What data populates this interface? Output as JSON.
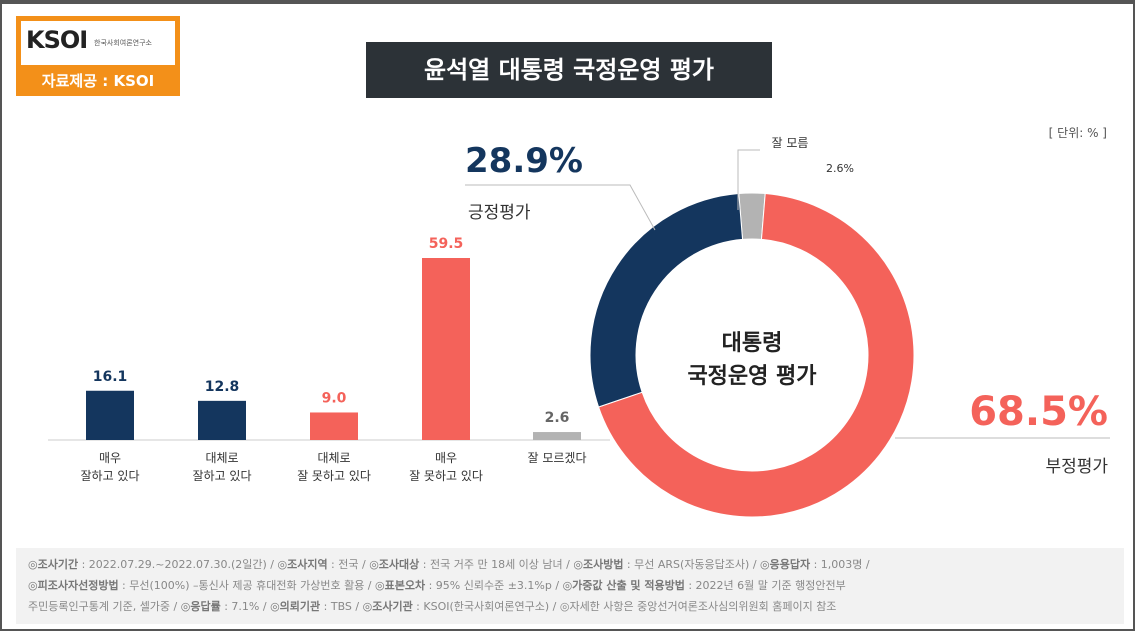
{
  "logo": {
    "brand": "KSOI",
    "subtitle": "한국사회여론연구소",
    "source": "자료제공 : KSOI"
  },
  "title": "윤석열 대통령 국정운영 평가",
  "unit": "[ 단위: % ]",
  "colors": {
    "positive": "#14365e",
    "negative": "#f4625a",
    "unknown": "#b3b3b3",
    "accent": "#f39019"
  },
  "chart_data": [
    {
      "type": "bar",
      "categories": [
        "매우\n잘하고 있다",
        "대체로\n잘하고 있다",
        "대체로\n잘 못하고 있다",
        "매우\n잘 못하고 있다",
        "잘 모르겠다"
      ],
      "values": [
        16.1,
        12.8,
        9.0,
        59.5,
        2.6
      ],
      "labels": [
        "16.1",
        "12.8",
        "9.0",
        "59.5",
        "2.6"
      ],
      "colors": [
        "#14365e",
        "#14365e",
        "#f4625a",
        "#f4625a",
        "#b3b3b3"
      ],
      "ylim": [
        0,
        60
      ]
    },
    {
      "type": "pie",
      "donut": true,
      "center_label": [
        "대통령",
        "국정운영 평가"
      ],
      "slices": [
        {
          "name": "잘 모름",
          "value": 2.6,
          "label": "2.6%",
          "color": "#b3b3b3"
        },
        {
          "name": "부정평가",
          "value": 68.5,
          "label": "68.5%",
          "color": "#f4625a"
        },
        {
          "name": "긍정평가",
          "value": 28.9,
          "label": "28.9%",
          "color": "#14365e"
        }
      ]
    }
  ],
  "footer": [
    [
      [
        "b",
        "◎조사기간"
      ],
      [
        "t",
        " : 2022.07.29.~2022.07.30.(2일간) / "
      ],
      [
        "b",
        "◎조사지역"
      ],
      [
        "t",
        " : 전국 / "
      ],
      [
        "b",
        "◎조사대상"
      ],
      [
        "t",
        " : 전국 거주 만 18세 이상 남녀 / "
      ],
      [
        "b",
        "◎조사방법"
      ],
      [
        "t",
        " : 무선 ARS(자동응답조사) / "
      ],
      [
        "b",
        "◎응용답자"
      ],
      [
        "t",
        " : 1,003명 /"
      ]
    ],
    [
      [
        "b",
        "◎피조사자선정방법"
      ],
      [
        "t",
        " : 무선(100%) –통신사 제공 휴대전화 가상번호 활용 / "
      ],
      [
        "b",
        "◎표본오차"
      ],
      [
        "t",
        " : 95% 신뢰수준 ±3.1%p / "
      ],
      [
        "b",
        "◎가중값 산출 및 적용방법"
      ],
      [
        "t",
        " : 2022년 6월 말 기준 행정안전부"
      ]
    ],
    [
      [
        "t",
        "주민등록인구통계 기준, 셀가중 / "
      ],
      [
        "b",
        "◎응답률"
      ],
      [
        "t",
        " : 7.1% / "
      ],
      [
        "b",
        "◎의뢰기관"
      ],
      [
        "t",
        " : TBS / "
      ],
      [
        "b",
        "◎조사기관"
      ],
      [
        "t",
        " : KSOI(한국사회여론연구소) / ◎자세한 사항은 중앙선거여론조사심의위원회 홈페이지 참조"
      ]
    ]
  ]
}
